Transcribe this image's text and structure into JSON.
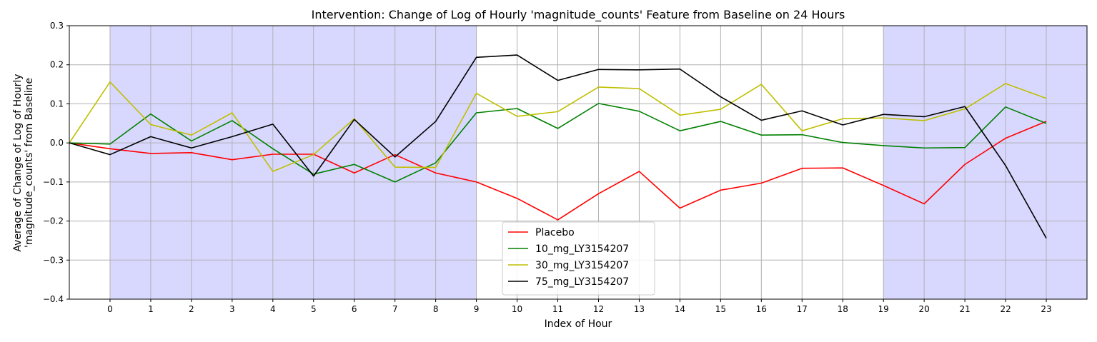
{
  "chart_data": {
    "type": "line",
    "title": "Intervention: Change of Log of Hourly 'magnitude_counts' Feature from Baseline on 24 Hours",
    "xlabel": "Index of Hour",
    "ylabel_line1": "Average of Change of Log of Hourly",
    "ylabel_line2": "'magnitude_counts' from Baseline",
    "xlim": [
      -1,
      24
    ],
    "ylim": [
      -0.4,
      0.3
    ],
    "x_ticks": [
      0,
      1,
      2,
      3,
      4,
      5,
      6,
      7,
      8,
      9,
      10,
      11,
      12,
      13,
      14,
      15,
      16,
      17,
      18,
      19,
      20,
      21,
      22,
      23
    ],
    "y_ticks": [
      -0.4,
      -0.3,
      -0.2,
      -0.1,
      0.0,
      0.1,
      0.2,
      0.3
    ],
    "y_tick_labels": [
      "−0.4",
      "−0.3",
      "−0.2",
      "−0.1",
      "0.0",
      "0.1",
      "0.2",
      "0.3"
    ],
    "grid": true,
    "shaded_regions": [
      {
        "x0": 0,
        "x1": 9,
        "color": "#d8d8ff"
      },
      {
        "x0": 19,
        "x1": 24,
        "color": "#d8d8ff"
      }
    ],
    "x": [
      -1,
      0,
      1,
      2,
      3,
      4,
      5,
      6,
      7,
      8,
      9,
      10,
      11,
      12,
      13,
      14,
      15,
      16,
      17,
      18,
      19,
      20,
      21,
      22,
      23
    ],
    "series": [
      {
        "name": "Placebo",
        "color": "#ff0000",
        "values": [
          0.0,
          -0.015,
          -0.027,
          -0.025,
          -0.043,
          -0.029,
          -0.029,
          -0.077,
          -0.03,
          -0.077,
          -0.1,
          -0.142,
          -0.197,
          -0.13,
          -0.073,
          -0.167,
          -0.121,
          -0.103,
          -0.065,
          -0.064,
          -0.109,
          -0.156,
          -0.055,
          0.012,
          0.055
        ]
      },
      {
        "name": "10_mg_LY3154207",
        "color": "#008000",
        "values": [
          0.0,
          -0.003,
          0.074,
          0.005,
          0.057,
          -0.015,
          -0.08,
          -0.055,
          -0.1,
          -0.051,
          0.077,
          0.088,
          0.037,
          0.101,
          0.081,
          0.031,
          0.055,
          0.02,
          0.021,
          0.001,
          -0.007,
          -0.013,
          -0.012,
          0.092,
          0.05
        ]
      },
      {
        "name": "30_mg_LY3154207",
        "color": "#bfbf00",
        "values": [
          0.0,
          0.156,
          0.047,
          0.02,
          0.077,
          -0.073,
          -0.03,
          0.062,
          -0.062,
          -0.063,
          0.127,
          0.068,
          0.08,
          0.143,
          0.139,
          0.071,
          0.086,
          0.15,
          0.031,
          0.062,
          0.064,
          0.057,
          0.087,
          0.152,
          0.114
        ]
      },
      {
        "name": "75_mg_LY3154207",
        "color": "#000000",
        "values": [
          0.0,
          -0.03,
          0.016,
          -0.013,
          0.016,
          0.048,
          -0.085,
          0.06,
          -0.036,
          0.055,
          0.219,
          0.225,
          0.16,
          0.188,
          0.187,
          0.189,
          0.118,
          0.058,
          0.082,
          0.046,
          0.073,
          0.067,
          0.093,
          -0.058,
          -0.244
        ]
      }
    ],
    "legend_position": "lower-center"
  }
}
